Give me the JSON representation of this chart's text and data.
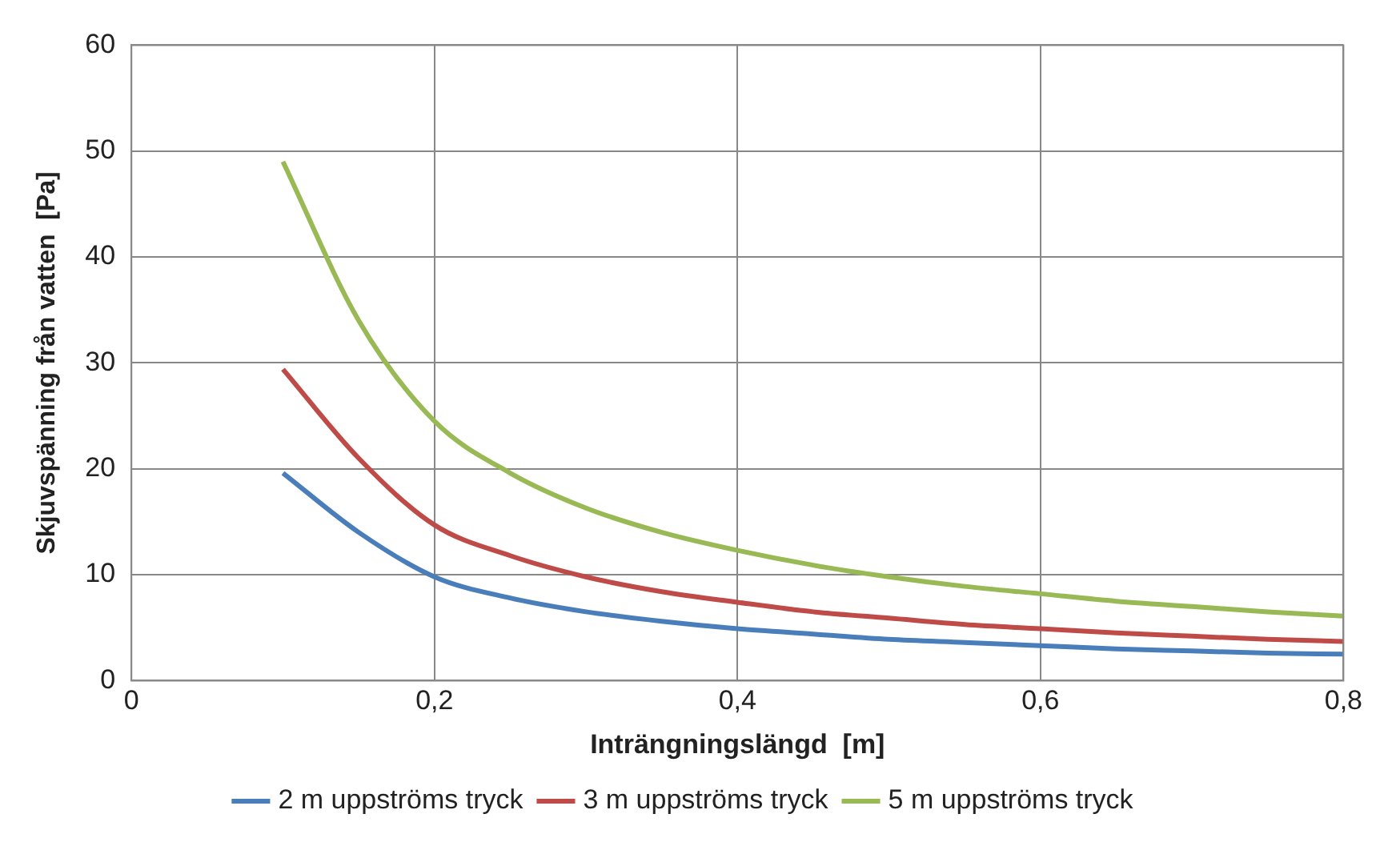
{
  "chart_data": {
    "type": "line",
    "xlabel": "Inträngningslängd  [m]",
    "ylabel": "Skjuvspänning från vatten  [Pa]",
    "x": [
      0.1,
      0.15,
      0.2,
      0.25,
      0.3,
      0.35,
      0.4,
      0.45,
      0.5,
      0.55,
      0.6,
      0.65,
      0.7,
      0.75,
      0.8
    ],
    "series": [
      {
        "name": "2 m uppströms tryck",
        "color": "#4a7ebb",
        "values": [
          19.6,
          14,
          9.8,
          7.8,
          6.5,
          5.6,
          4.9,
          4.4,
          3.9,
          3.6,
          3.3,
          3,
          2.8,
          2.6,
          2.5
        ]
      },
      {
        "name": "3 m uppströms tryck",
        "color": "#be4b48",
        "values": [
          29.4,
          21,
          14.7,
          11.8,
          9.8,
          8.4,
          7.4,
          6.5,
          5.9,
          5.3,
          4.9,
          4.5,
          4.2,
          3.9,
          3.7
        ]
      },
      {
        "name": "5 m uppströms tryck",
        "color": "#98b954",
        "values": [
          49,
          34,
          24.5,
          19.6,
          16.3,
          14,
          12.3,
          10.9,
          9.8,
          8.9,
          8.2,
          7.5,
          7,
          6.5,
          6.1
        ]
      }
    ],
    "xlim": [
      0,
      0.8
    ],
    "xticks": [
      0,
      {
        "value": 0.2,
        "label": "0,2"
      },
      {
        "value": 0.4,
        "label": "0,4"
      },
      {
        "value": 0.6,
        "label": "0,6"
      },
      {
        "value": 0.8,
        "label": "0,8"
      }
    ],
    "ylim": [
      0,
      60
    ],
    "yticks": [
      0,
      10,
      20,
      30,
      40,
      50,
      60
    ],
    "grid": true,
    "legend": "bottom",
    "marker": "none",
    "line_style": "solid"
  }
}
